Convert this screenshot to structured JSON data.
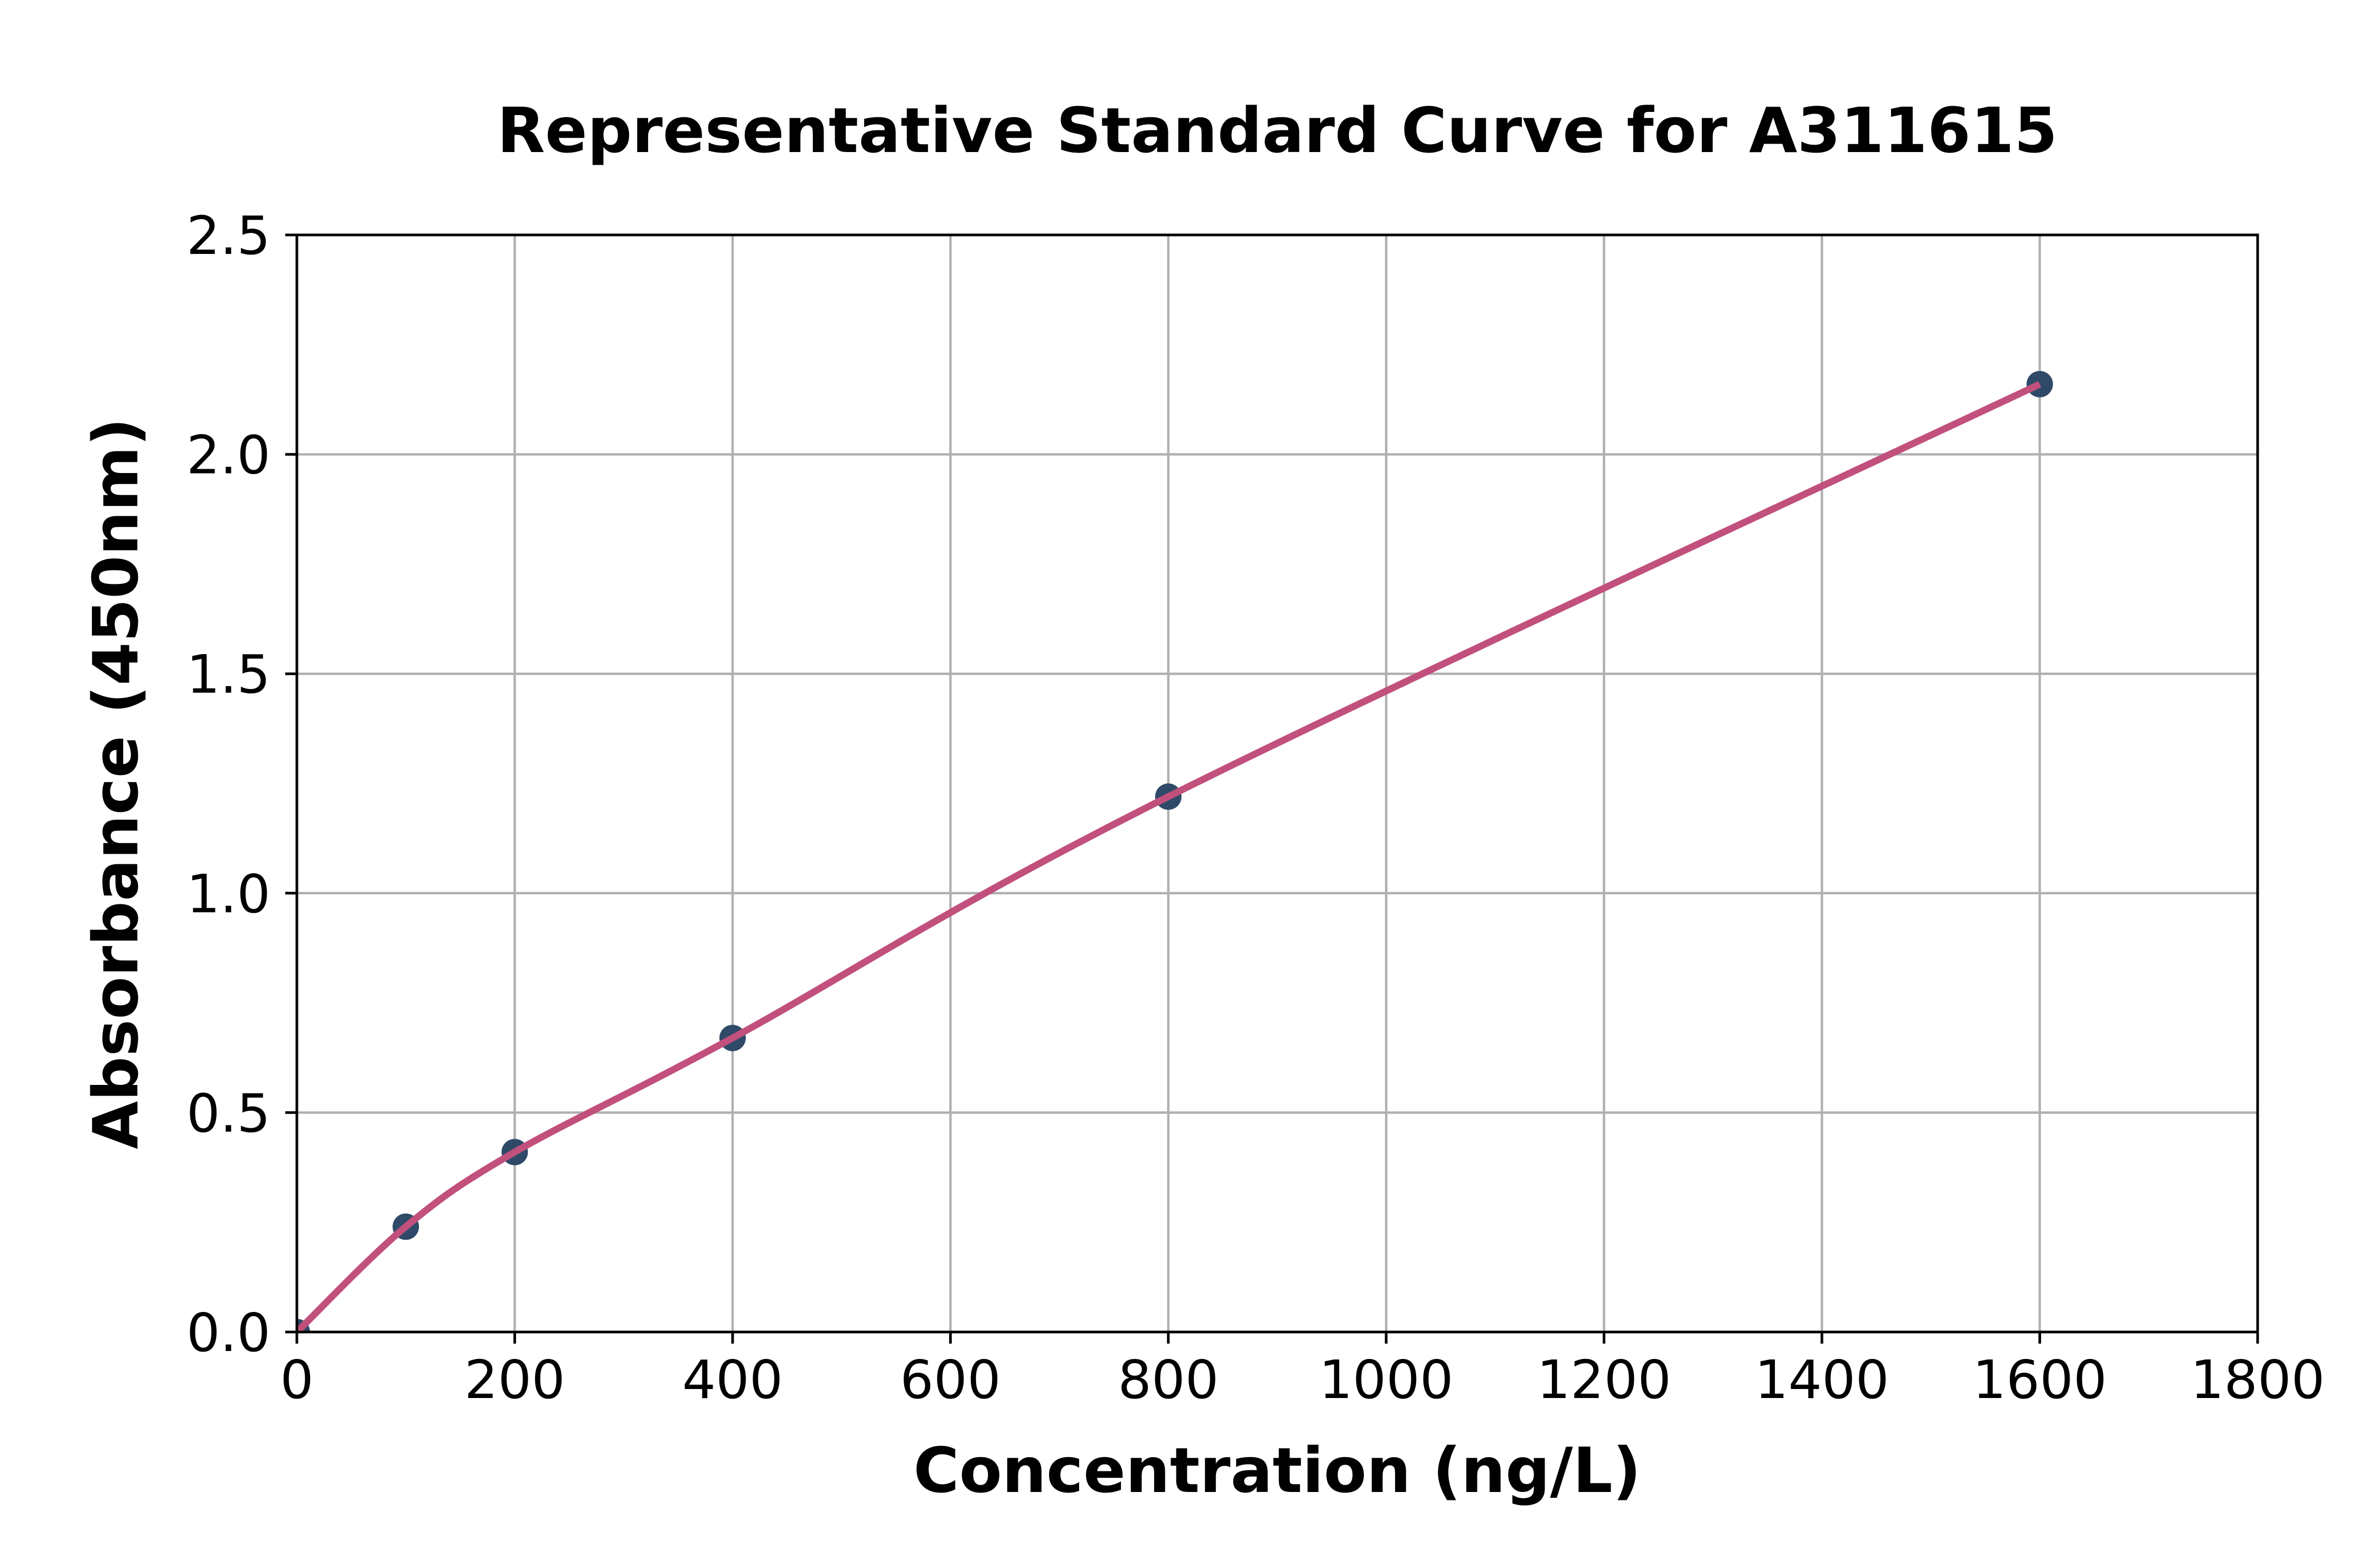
{
  "chart_data": {
    "type": "scatter",
    "title": "Representative Standard Curve for A311615",
    "xlabel": "Concentration (ng/L)",
    "ylabel": "Absorbance (450nm)",
    "xlim": [
      0,
      1800
    ],
    "ylim": [
      0.0,
      2.5
    ],
    "grid": true,
    "legend": "none",
    "x": [
      0,
      100,
      200,
      400,
      800,
      1600
    ],
    "y": [
      0.0,
      0.24,
      0.41,
      0.67,
      1.22,
      2.16
    ],
    "x_ticks": {
      "values": [
        0,
        200,
        400,
        600,
        800,
        1000,
        1200,
        1400,
        1600,
        1800
      ],
      "labels": [
        "0",
        "200",
        "400",
        "600",
        "800",
        "1000",
        "1200",
        "1400",
        "1600",
        "1800"
      ]
    },
    "y_ticks": {
      "values": [
        0.0,
        0.5,
        1.0,
        1.5,
        2.0,
        2.5
      ],
      "labels": [
        "0.0",
        "0.5",
        "1.0",
        "1.5",
        "2.0",
        "2.5"
      ]
    },
    "colors": {
      "curve": "#C1507C",
      "marker": "#2F4A68",
      "grid": "#B0B0B0",
      "axis": "#000000",
      "background": "#FFFFFF"
    },
    "marker_radius_px": 25,
    "curve_style": "smooth fit through all points, from (0,0) to (1600,2.16)"
  }
}
